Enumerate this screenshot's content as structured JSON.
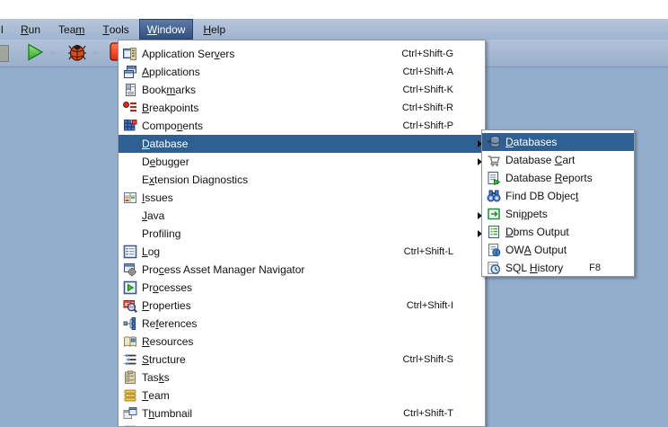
{
  "menubar": {
    "partial_fragment": "l",
    "items": [
      {
        "name": "run",
        "pre": "",
        "key": "R",
        "post": "un",
        "selected": false
      },
      {
        "name": "team",
        "pre": "Tea",
        "key": "m",
        "post": "",
        "selected": false
      },
      {
        "name": "tools",
        "pre": "",
        "key": "T",
        "post": "ools",
        "selected": false
      },
      {
        "name": "window",
        "pre": "",
        "key": "W",
        "post": "indow",
        "selected": true
      },
      {
        "name": "help",
        "pre": "",
        "key": "H",
        "post": "elp",
        "selected": false
      }
    ]
  },
  "toolbar": {
    "buttons": [
      {
        "name": "run-button",
        "icon": "play-icon",
        "dropdown": true
      },
      {
        "name": "debug-button",
        "icon": "debug-icon",
        "dropdown": true
      },
      {
        "name": "stop-button",
        "icon": "stop-icon",
        "dropdown": true,
        "dark_arrow": true
      }
    ]
  },
  "window_menu": {
    "items": [
      {
        "name": "application-servers",
        "icon": "application-servers-icon",
        "pre": "Application Ser",
        "key": "v",
        "post": "ers",
        "shortcut": "Ctrl+Shift-G"
      },
      {
        "name": "applications",
        "icon": "applications-icon",
        "pre": "",
        "key": "A",
        "post": "pplications",
        "shortcut": "Ctrl+Shift-A"
      },
      {
        "name": "bookmarks",
        "icon": "bookmarks-icon",
        "pre": "Book",
        "key": "m",
        "post": "arks",
        "shortcut": "Ctrl+Shift-K"
      },
      {
        "name": "breakpoints",
        "icon": "breakpoints-icon",
        "pre": "",
        "key": "B",
        "post": "reakpoints",
        "shortcut": "Ctrl+Shift-R"
      },
      {
        "name": "components",
        "icon": "components-icon",
        "pre": "Compo",
        "key": "n",
        "post": "ents",
        "shortcut": "Ctrl+Shift-P"
      },
      {
        "name": "database",
        "icon": null,
        "pre": "",
        "key": "D",
        "post": "atabase",
        "submenu": true,
        "selected": true
      },
      {
        "name": "debugger",
        "icon": null,
        "pre": "D",
        "key": "e",
        "post": "bugger",
        "submenu": true
      },
      {
        "name": "extension-diagnostics",
        "icon": null,
        "pre": "E",
        "key": "x",
        "post": "tension Diagnostics"
      },
      {
        "name": "issues",
        "icon": "issues-icon",
        "pre": "",
        "key": "I",
        "post": "ssues"
      },
      {
        "name": "java",
        "icon": null,
        "pre": "",
        "key": "J",
        "post": "ava",
        "submenu": true
      },
      {
        "name": "profiling",
        "icon": null,
        "pre": "Profilin",
        "key": "g",
        "post": "",
        "submenu": true
      },
      {
        "name": "log",
        "icon": "log-icon",
        "pre": "",
        "key": "L",
        "post": "og",
        "shortcut": "Ctrl+Shift-L"
      },
      {
        "name": "process-asset-manager-navigator",
        "icon": "pam-navigator-icon",
        "pre": "Pro",
        "key": "c",
        "post": "ess Asset Manager Navigator"
      },
      {
        "name": "processes",
        "icon": "processes-icon",
        "pre": "Pr",
        "key": "o",
        "post": "cesses"
      },
      {
        "name": "properties",
        "icon": "properties-icon",
        "pre": "",
        "key": "P",
        "post": "roperties",
        "shortcut": "Ctrl+Shift-I"
      },
      {
        "name": "references",
        "icon": "references-icon",
        "pre": "Re",
        "key": "f",
        "post": "erences"
      },
      {
        "name": "resources",
        "icon": "resources-icon",
        "pre": "",
        "key": "R",
        "post": "esources"
      },
      {
        "name": "structure",
        "icon": "structure-icon",
        "pre": "",
        "key": "S",
        "post": "tructure",
        "shortcut": "Ctrl+Shift-S"
      },
      {
        "name": "tasks",
        "icon": "tasks-icon",
        "pre": "Tas",
        "key": "k",
        "post": "s"
      },
      {
        "name": "team",
        "icon": "team-icon",
        "pre": "",
        "key": "T",
        "post": "eam"
      },
      {
        "name": "thumbnail",
        "icon": "thumbnail-icon",
        "pre": "T",
        "key": "h",
        "post": "umbnail",
        "shortcut": "Ctrl+Shift-T"
      },
      {
        "name": "clipped-item",
        "icon": "partial-icon",
        "pre": "",
        "key": "",
        "post": "",
        "partial": true
      }
    ]
  },
  "database_submenu": {
    "items": [
      {
        "name": "databases",
        "icon": "databases-icon",
        "pre": "",
        "key": "D",
        "post": "atabases",
        "selected": true
      },
      {
        "name": "database-cart",
        "icon": "database-cart-icon",
        "pre": "Database ",
        "key": "C",
        "post": "art"
      },
      {
        "name": "database-reports",
        "icon": "database-reports-icon",
        "pre": "Database ",
        "key": "R",
        "post": "eports"
      },
      {
        "name": "find-db-object",
        "icon": "find-db-object-icon",
        "pre": "Find DB Objec",
        "key": "t",
        "post": ""
      },
      {
        "name": "snippets",
        "icon": "snippets-icon",
        "pre": "Sni",
        "key": "p",
        "post": "pets"
      },
      {
        "name": "dbms-output",
        "icon": "dbms-output-icon",
        "pre": "",
        "key": "D",
        "post": "bms Output"
      },
      {
        "name": "owa-output",
        "icon": "owa-output-icon",
        "pre": "OW",
        "key": "A",
        "post": " Output"
      },
      {
        "name": "sql-history",
        "icon": "sql-history-icon",
        "pre": "SQL ",
        "key": "H",
        "post": "istory",
        "shortcut": "F8"
      }
    ]
  },
  "colors": {
    "app_background": "#93aecb",
    "menu_highlight": "#2e6094",
    "menubar_selected": "#31507f",
    "panel_background": "#ffffff"
  }
}
